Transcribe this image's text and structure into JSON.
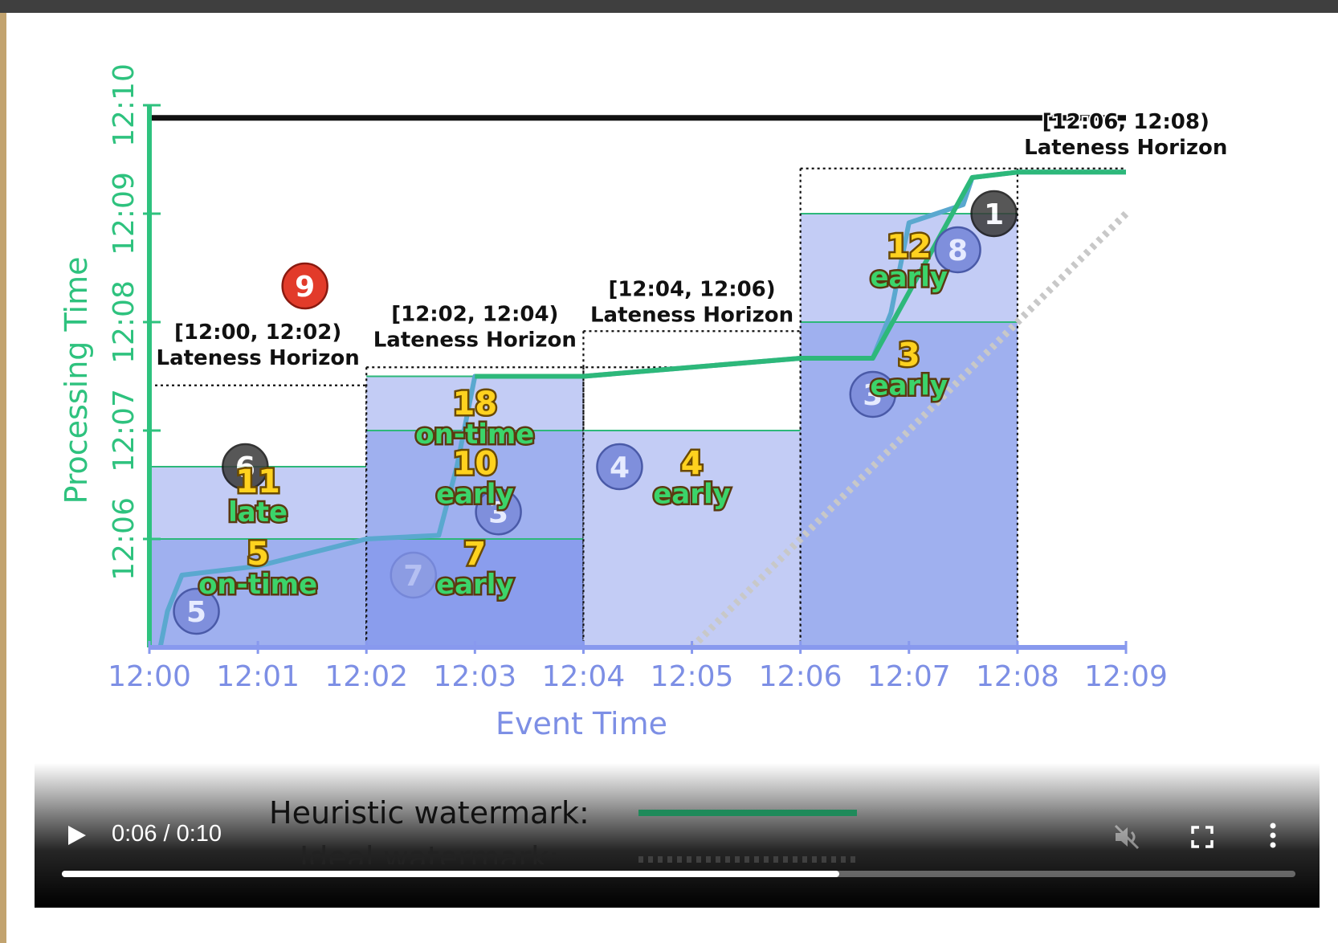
{
  "chart_data": {
    "type": "area",
    "xlabel": "Event Time",
    "ylabel": "Processing Time",
    "x_ticks": [
      "12:00",
      "12:01",
      "12:02",
      "12:03",
      "12:04",
      "12:05",
      "12:06",
      "12:07",
      "12:08",
      "12:09"
    ],
    "y_ticks": [
      "12:06",
      "12:07",
      "12:08",
      "12:09",
      "12:10"
    ],
    "xlim": [
      "12:00",
      "12:09"
    ],
    "ylim": [
      "12:05",
      "12:10"
    ],
    "colors": {
      "heuristic": "#2db87a",
      "ideal": "#c8c8c8",
      "window_fill": "#c3ccf5",
      "pane_fill": "#9fb0ef",
      "pane_fill_deep": "#8a9ded",
      "axis_y": "#2ec27e",
      "axis_x": "#8899ee",
      "tick_x": "#7d8fe5",
      "tick_y": "#2ec27e",
      "count_text": "#ffd21f",
      "count_outline": "#6b4a00",
      "label_text": "#3bd46a",
      "label_outline": "#5a3a10",
      "lateness_line": "#111111",
      "dropped_circle": "#e23b2a"
    },
    "windows": [
      {
        "start": "12:00",
        "end": "12:02",
        "pane_boundaries": [
          "12:06",
          "12:06:40"
        ],
        "lateness_horizon": "12:07:25",
        "horizon_label": "[12:00, 12:02)",
        "horizon_caption": "Lateness Horizon"
      },
      {
        "start": "12:02",
        "end": "12:04",
        "pane_boundaries": [
          "12:06",
          "12:07",
          "12:07:30"
        ],
        "lateness_horizon": "12:07:35",
        "horizon_label": "[12:02, 12:04)",
        "horizon_caption": "Lateness Horizon"
      },
      {
        "start": "12:04",
        "end": "12:06",
        "pane_boundaries": [
          "12:07"
        ],
        "lateness_horizon": "12:07:55",
        "horizon_label": "[12:04, 12:06)",
        "horizon_caption": "Lateness Horizon"
      },
      {
        "start": "12:06",
        "end": "12:08",
        "pane_boundaries": [
          "12:08",
          "12:09"
        ],
        "lateness_horizon": "12:09:25",
        "horizon_label": "[12:06, 12:08)",
        "horizon_caption": "Lateness Horizon"
      }
    ],
    "heuristic_watermark": {
      "name": "Heuristic watermark",
      "x": [
        "12:00:06",
        "12:00:10",
        "12:00:18",
        "12:01:00",
        "12:01:40",
        "12:02:00",
        "12:02:40",
        "12:02:50",
        "12:03:00",
        "12:04:00",
        "12:05:00",
        "12:06:00",
        "12:06:40",
        "12:06:50",
        "12:07:00",
        "12:07:30",
        "12:07:35",
        "12:08:00",
        "12:09:00"
      ],
      "y": [
        "12:05",
        "12:05:20",
        "12:05:40",
        "12:05:45",
        "12:05:55",
        "12:06:00",
        "12:06:02",
        "12:06:40",
        "12:07:30",
        "12:07:30",
        "12:07:35",
        "12:07:40",
        "12:07:40",
        "12:08:05",
        "12:08:55",
        "12:09:05",
        "12:09:20",
        "12:09:23",
        "12:09:23"
      ]
    },
    "ideal_watermark": {
      "name": "Ideal watermark",
      "x": [
        "12:05:00",
        "12:09:00"
      ],
      "y": [
        "12:05:00",
        "12:09:00"
      ]
    },
    "lateness_horizon_line": {
      "y": "12:09:53"
    },
    "data_points": [
      {
        "value": "5",
        "x": "12:00:26",
        "y": "12:05:20",
        "style": "blue"
      },
      {
        "value": "6",
        "x": "12:00:53",
        "y": "12:06:40",
        "style": "dark"
      },
      {
        "value": "9",
        "x": "12:01:26",
        "y": "12:08:20",
        "style": "red"
      },
      {
        "value": "7",
        "x": "12:02:26",
        "y": "12:05:40",
        "style": "faint"
      },
      {
        "value": "3",
        "x": "12:03:13",
        "y": "12:06:15",
        "style": "blue"
      },
      {
        "value": "4",
        "x": "12:04:20",
        "y": "12:06:40",
        "style": "blue"
      },
      {
        "value": "3",
        "x": "12:06:40",
        "y": "12:07:20",
        "style": "blue"
      },
      {
        "value": "8",
        "x": "12:07:27",
        "y": "12:08:40",
        "style": "blue"
      },
      {
        "value": "1",
        "x": "12:07:47",
        "y": "12:09:00",
        "style": "dark"
      }
    ],
    "pane_results": [
      {
        "count": "5",
        "label": "on-time",
        "x": "12:01:00",
        "y": "12:05:45"
      },
      {
        "count": "11",
        "label": "late",
        "x": "12:01:00",
        "y": "12:06:25"
      },
      {
        "count": "7",
        "label": "early",
        "x": "12:03:00",
        "y": "12:05:45"
      },
      {
        "count": "10",
        "label": "early",
        "x": "12:03:00",
        "y": "12:06:35"
      },
      {
        "count": "18",
        "label": "on-time",
        "x": "12:03:00",
        "y": "12:07:08"
      },
      {
        "count": "4",
        "label": "early",
        "x": "12:05:00",
        "y": "12:06:35"
      },
      {
        "count": "3",
        "label": "early",
        "x": "12:07:00",
        "y": "12:07:35"
      },
      {
        "count": "12",
        "label": "early",
        "x": "12:07:00",
        "y": "12:08:35"
      }
    ]
  },
  "legend": {
    "heuristic_label": "Heuristic watermark:",
    "ideal_label": "Ideal watermark:"
  },
  "player": {
    "time_display": "0:06 / 0:10",
    "progress": 0.63,
    "icons": {
      "play": "play-icon",
      "mute": "volume-muted-icon",
      "fullscreen": "fullscreen-icon",
      "more": "more-vertical-icon"
    }
  }
}
